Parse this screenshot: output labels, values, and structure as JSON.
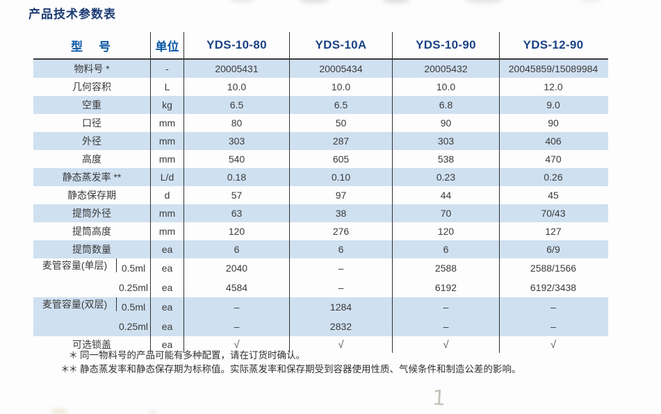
{
  "page": {
    "title": "产品技术参数表"
  },
  "colors": {
    "row_shade": "#cfe0f1",
    "header_label_blue": "#0b57a5",
    "model_name_blue": "#1a4284",
    "title_navy": "#1c3a74",
    "grid_line": "#2e2e2e",
    "body_text": "#3a3a3a"
  },
  "table": {
    "header": {
      "model_label": "型　号",
      "unit_label": "单位",
      "models": [
        "YDS-10-80",
        "YDS-10A",
        "YDS-10-90",
        "YDS-12-90"
      ]
    },
    "rows": [
      {
        "type": "simple",
        "shaded": true,
        "label": "物料号 *",
        "unit": "-",
        "values": [
          "20005431",
          "20005434",
          "20005432",
          "20045859/15089984"
        ]
      },
      {
        "type": "simple",
        "shaded": false,
        "label": "几何容积",
        "unit": "L",
        "values": [
          "10.0",
          "10.0",
          "10.0",
          "12.0"
        ]
      },
      {
        "type": "simple",
        "shaded": true,
        "label": "空重",
        "unit": "kg",
        "values": [
          "6.5",
          "6.5",
          "6.8",
          "9.0"
        ]
      },
      {
        "type": "simple",
        "shaded": false,
        "label": "口径",
        "unit": "mm",
        "values": [
          "80",
          "50",
          "90",
          "90"
        ]
      },
      {
        "type": "simple",
        "shaded": true,
        "label": "外径",
        "unit": "mm",
        "values": [
          "303",
          "287",
          "303",
          "406"
        ]
      },
      {
        "type": "simple",
        "shaded": false,
        "label": "高度",
        "unit": "mm",
        "values": [
          "540",
          "605",
          "538",
          "470"
        ]
      },
      {
        "type": "simple",
        "shaded": true,
        "label": "静态蒸发率 **",
        "unit": "L/d",
        "values": [
          "0.18",
          "0.10",
          "0.23",
          "0.26"
        ]
      },
      {
        "type": "simple",
        "shaded": false,
        "label": "静态保存期",
        "unit": "d",
        "values": [
          "57",
          "97",
          "44",
          "45"
        ]
      },
      {
        "type": "simple",
        "shaded": true,
        "label": "提筒外径",
        "unit": "mm",
        "values": [
          "63",
          "38",
          "70",
          "70/43"
        ]
      },
      {
        "type": "simple",
        "shaded": false,
        "label": "提筒高度",
        "unit": "mm",
        "values": [
          "120",
          "276",
          "120",
          "127"
        ]
      },
      {
        "type": "simple",
        "shaded": true,
        "label": "提筒数量",
        "unit": "ea",
        "values": [
          "6",
          "6",
          "6",
          "6/9"
        ]
      },
      {
        "type": "group",
        "shaded": false,
        "label": "麦管容量(单层)",
        "subs": [
          {
            "label": "0.5ml",
            "unit": "ea",
            "values": [
              "2040",
              "–",
              "2588",
              "2588/1566"
            ]
          },
          {
            "label": "0.25ml",
            "unit": "ea",
            "values": [
              "4584",
              "–",
              "6192",
              "6192/3438"
            ]
          }
        ]
      },
      {
        "type": "group",
        "shaded": true,
        "label": "麦管容量(双层)",
        "subs": [
          {
            "label": "0.5ml",
            "unit": "ea",
            "values": [
              "–",
              "1284",
              "–",
              "–"
            ]
          },
          {
            "label": "0.25ml",
            "unit": "ea",
            "values": [
              "–",
              "2832",
              "–",
              "–"
            ]
          }
        ]
      },
      {
        "type": "simple",
        "shaded": false,
        "label": "可选锁盖",
        "unit": "ea",
        "values": [
          "√",
          "√",
          "√",
          "√"
        ],
        "check": true
      }
    ]
  },
  "footnotes": [
    {
      "marker": "＊",
      "text": "同一物料号的产品可能有多种配置，请在订货时确认。"
    },
    {
      "marker": "＊＊",
      "text": "静态蒸发率和静态保存期为标称值。实际蒸发率和保存期受到容器使用性质、气候条件和制造公差的影响。"
    }
  ],
  "artifacts": {
    "handwritten_mark": "1"
  }
}
